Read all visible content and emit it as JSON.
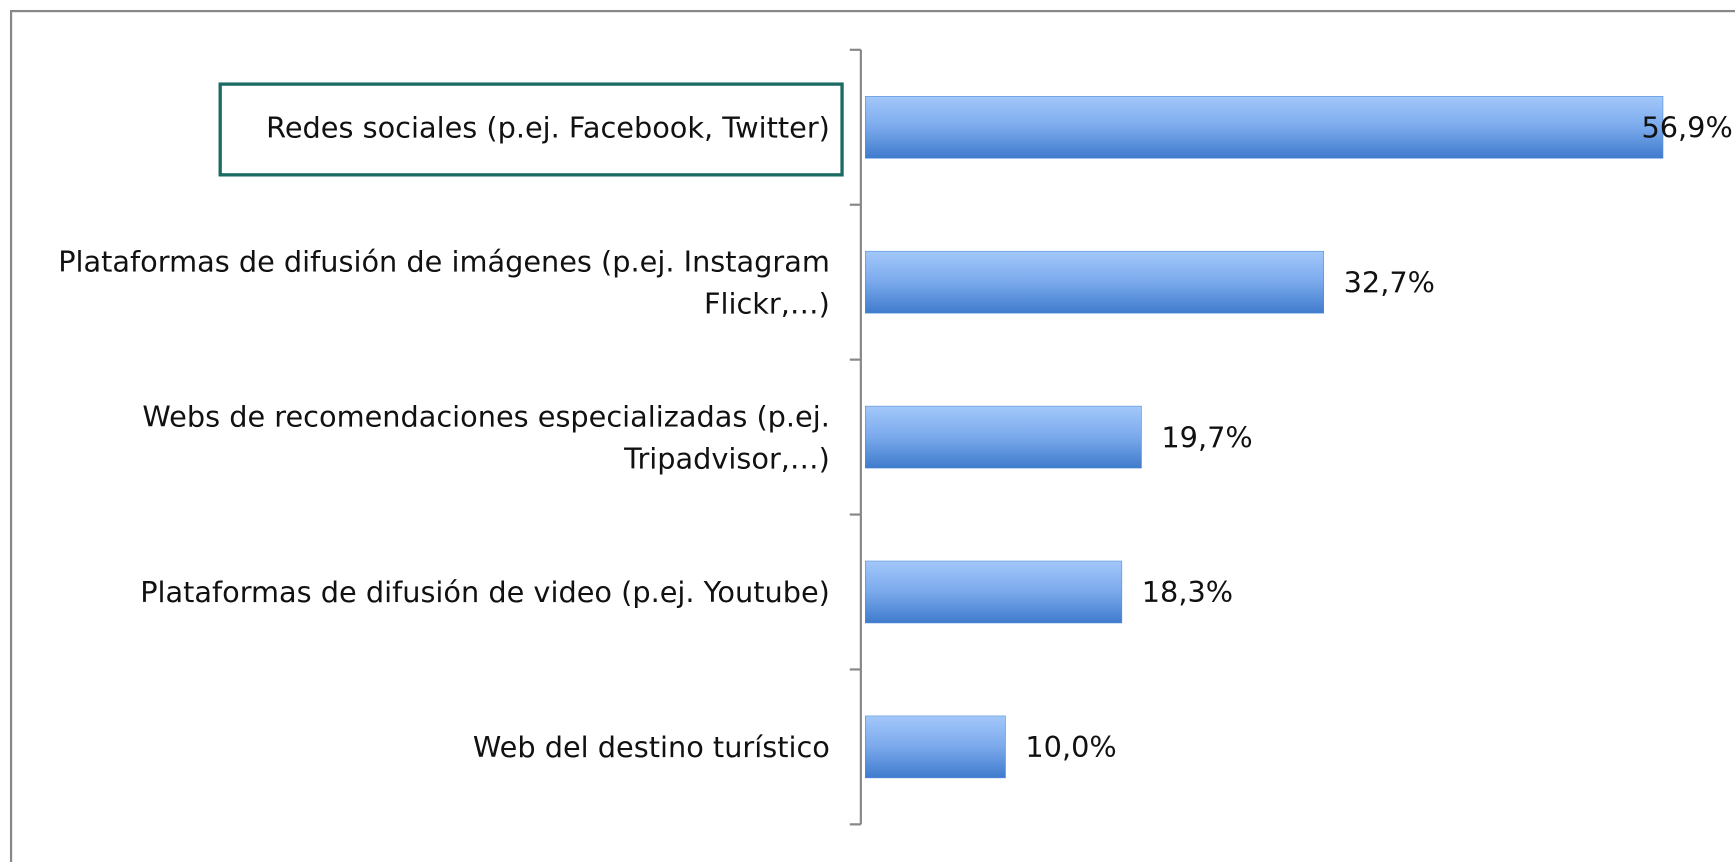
{
  "chart_data": {
    "type": "bar",
    "orientation": "horizontal",
    "categories": [
      [
        "Redes sociales (p.ej. Facebook, Twitter)"
      ],
      [
        "Plataformas de difusión de imágenes (p.ej. Instagram",
        "Flickr,…)"
      ],
      [
        "Webs de recomendaciones especializadas (p.ej.",
        "Tripadvisor,…)"
      ],
      [
        "Plataformas de difusión de video (p.ej. Youtube)"
      ],
      [
        "Web del destino turístico"
      ]
    ],
    "values": [
      56.9,
      32.7,
      19.7,
      18.3,
      10.0
    ],
    "value_labels": [
      "56,9%",
      "32,7%",
      "19,7%",
      "18,3%",
      "10,0%"
    ],
    "color": "#4f8ad8"
  }
}
